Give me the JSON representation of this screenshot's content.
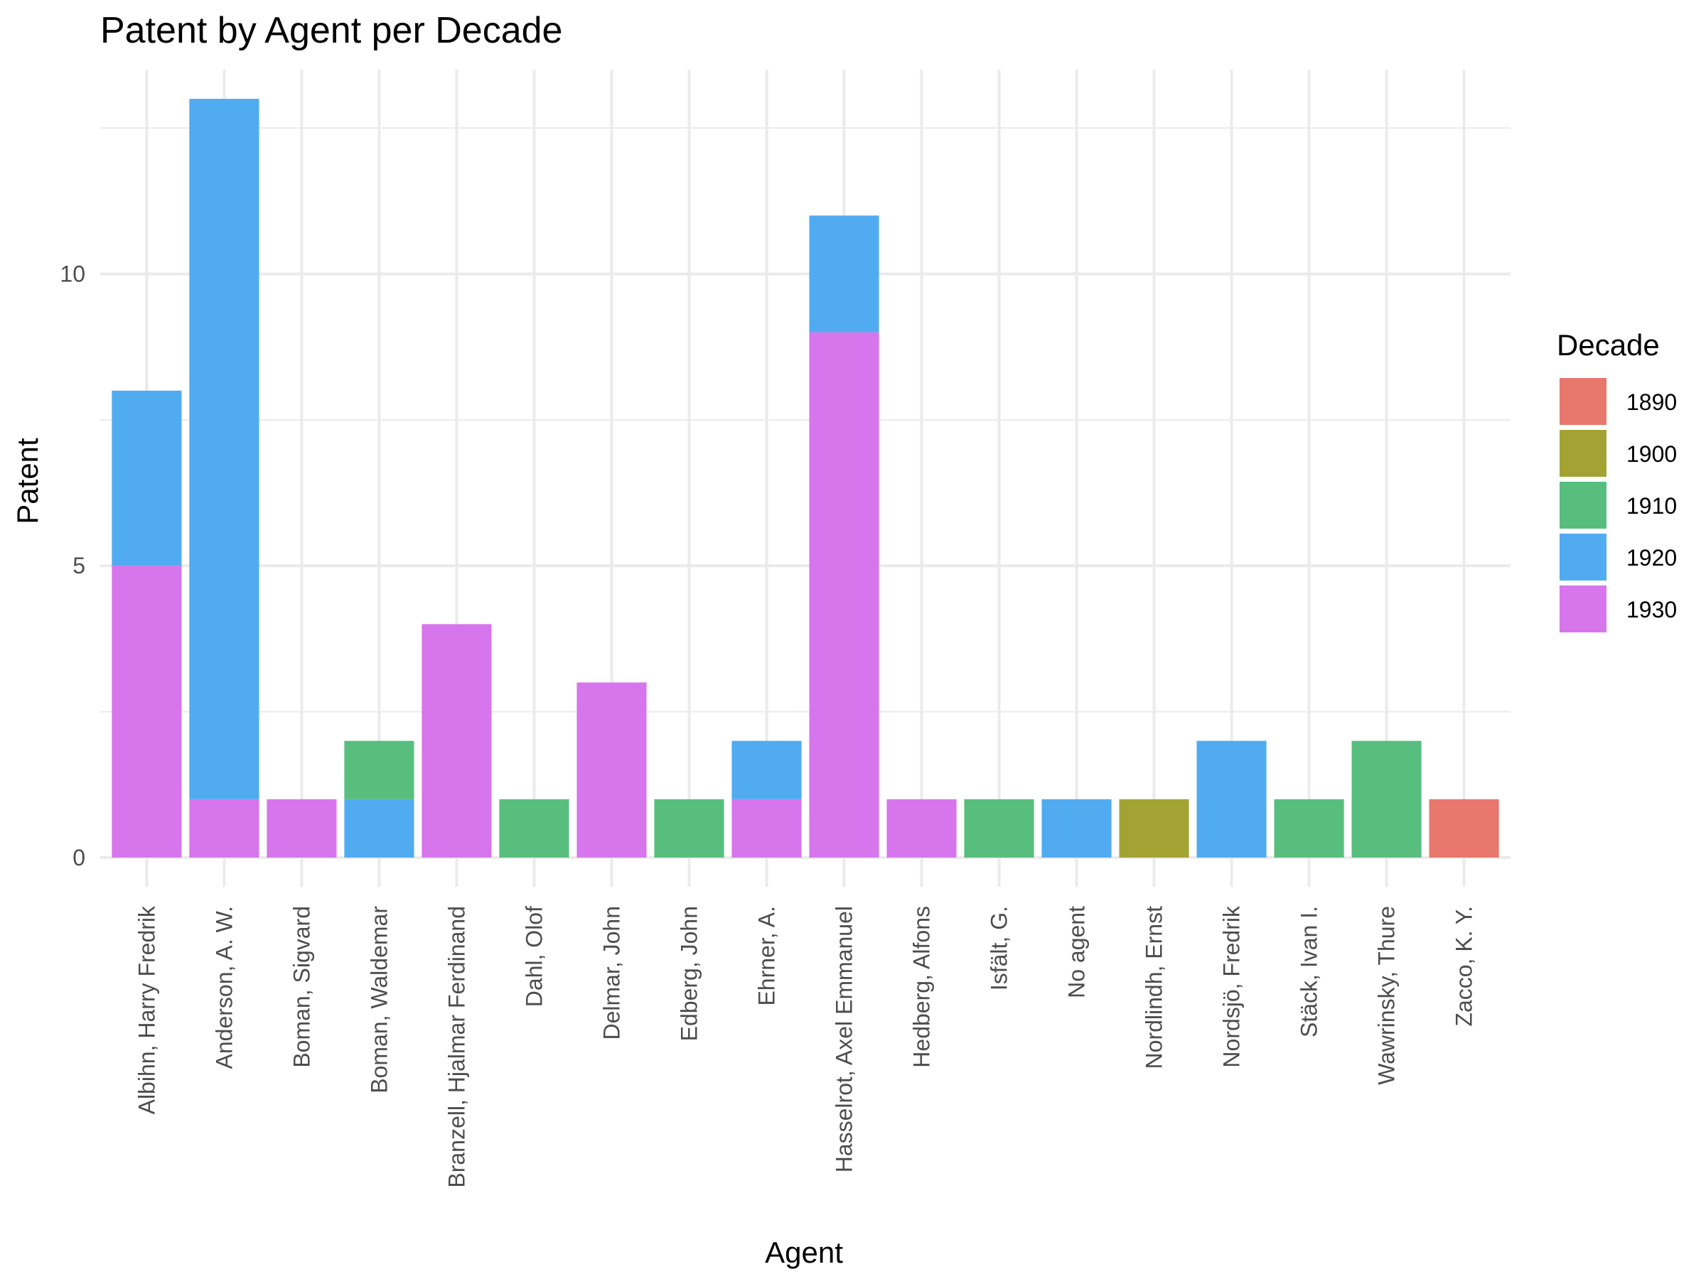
{
  "chart_data": {
    "type": "bar",
    "stacked": true,
    "title": "Patent by Agent per Decade",
    "xlabel": "Agent",
    "ylabel": "Patent",
    "ylim": [
      -0.5,
      13.5
    ],
    "yticks": [
      0,
      5,
      10
    ],
    "grid": true,
    "legend": {
      "title": "Decade",
      "position": "right"
    },
    "categories": [
      "Albihn, Harry Fredrik",
      "Anderson, A. W.",
      "Boman, Sigvard",
      "Boman, Waldemar",
      "Branzell, Hjalmar Ferdinand",
      "Dahl, Olof",
      "Delmar, John",
      "Edberg, John",
      "Ehrner, A.",
      "Hasselrot, Axel Emmanuel",
      "Hedberg, Alfons",
      "Isfält, G.",
      "No agent",
      "Nordlindh, Ernst",
      "Nordsjö, Fredrik",
      "Stäck, Ivan I.",
      "Wawrinsky, Thure",
      "Zacco, K. Y."
    ],
    "series": [
      {
        "name": "1890",
        "color": "#E8776D",
        "values": [
          0,
          0,
          0,
          0,
          0,
          0,
          0,
          0,
          0,
          0,
          0,
          0,
          0,
          0,
          0,
          0,
          0,
          1
        ]
      },
      {
        "name": "1900",
        "color": "#A3A334",
        "values": [
          0,
          0,
          0,
          0,
          0,
          0,
          0,
          0,
          0,
          0,
          0,
          0,
          0,
          1,
          0,
          0,
          0,
          0
        ]
      },
      {
        "name": "1910",
        "color": "#57BE7E",
        "values": [
          0,
          0,
          0,
          1,
          0,
          1,
          0,
          1,
          0,
          0,
          0,
          1,
          0,
          0,
          0,
          1,
          2,
          0
        ]
      },
      {
        "name": "1920",
        "color": "#51ABF1",
        "values": [
          3,
          12,
          0,
          1,
          0,
          0,
          0,
          0,
          1,
          2,
          0,
          0,
          1,
          0,
          2,
          0,
          0,
          0
        ]
      },
      {
        "name": "1930",
        "color": "#D775EC",
        "values": [
          5,
          1,
          1,
          0,
          4,
          0,
          3,
          0,
          1,
          9,
          1,
          0,
          0,
          0,
          0,
          0,
          0,
          0
        ]
      }
    ]
  }
}
